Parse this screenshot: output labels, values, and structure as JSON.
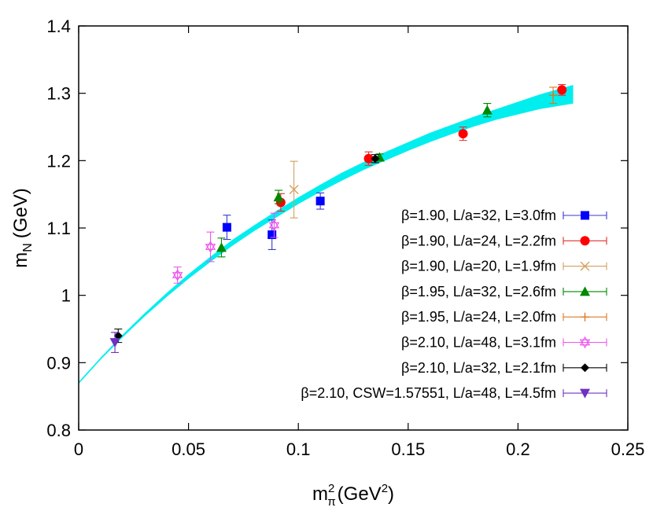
{
  "chart_data": {
    "type": "scatter",
    "title": "",
    "xlabel": "m_π^2 (GeV^2)",
    "xlabel_parts": {
      "base": "m",
      "sup": "2",
      "sub": "π",
      "unit_open": "(GeV",
      "unit_sup": "2",
      "unit_close": ")"
    },
    "ylabel": "m_N (GeV)",
    "ylabel_parts": {
      "base": "m",
      "sub": "N",
      "unit": "(GeV)"
    },
    "xlim": [
      0,
      0.25
    ],
    "ylim": [
      0.8,
      1.4
    ],
    "x_ticks": [
      {
        "value": 0,
        "label": "0"
      },
      {
        "value": 0.05,
        "label": "0.05"
      },
      {
        "value": 0.1,
        "label": "0.1"
      },
      {
        "value": 0.15,
        "label": "0.15"
      },
      {
        "value": 0.2,
        "label": "0.2"
      },
      {
        "value": 0.25,
        "label": "0.25"
      }
    ],
    "y_ticks": [
      {
        "value": 0.8,
        "label": "0.8"
      },
      {
        "value": 0.9,
        "label": "0.9"
      },
      {
        "value": 1.0,
        "label": "1"
      },
      {
        "value": 1.1,
        "label": "1.1"
      },
      {
        "value": 1.2,
        "label": "1.2"
      },
      {
        "value": 1.3,
        "label": "1.3"
      },
      {
        "value": 1.4,
        "label": "1.4"
      }
    ],
    "grid": false,
    "legend_position": "right",
    "fit_band": {
      "color": "#00eeee",
      "x": [
        0.0,
        0.01,
        0.02,
        0.03,
        0.04,
        0.05,
        0.06,
        0.07,
        0.08,
        0.09,
        0.1,
        0.11,
        0.12,
        0.13,
        0.14,
        0.15,
        0.16,
        0.17,
        0.18,
        0.19,
        0.2,
        0.21,
        0.225
      ],
      "lower": [
        0.869,
        0.905,
        0.938,
        0.969,
        0.998,
        1.025,
        1.05,
        1.074,
        1.096,
        1.116,
        1.136,
        1.154,
        1.171,
        1.187,
        1.201,
        1.215,
        1.228,
        1.24,
        1.251,
        1.261,
        1.269,
        1.277,
        1.285
      ],
      "upper": [
        0.871,
        0.907,
        0.941,
        0.973,
        1.003,
        1.031,
        1.057,
        1.082,
        1.104,
        1.125,
        1.145,
        1.164,
        1.182,
        1.198,
        1.213,
        1.227,
        1.241,
        1.253,
        1.265,
        1.276,
        1.287,
        1.298,
        1.312
      ]
    },
    "series": [
      {
        "name": "β=1.90, L/a=32, L=3.0fm",
        "marker": "square",
        "color": "#0000ff",
        "errcolor": "#3a3ad0",
        "points": [
          {
            "x": 0.0675,
            "y": 1.101,
            "err": 0.018
          },
          {
            "x": 0.088,
            "y": 1.09,
            "err": 0.022
          },
          {
            "x": 0.11,
            "y": 1.14,
            "err": 0.012
          }
        ]
      },
      {
        "name": "β=1.90, L/a=24, L=2.2fm",
        "marker": "circle",
        "color": "#ff0000",
        "errcolor": "#e03030",
        "points": [
          {
            "x": 0.092,
            "y": 1.138,
            "err": 0.013
          },
          {
            "x": 0.132,
            "y": 1.203,
            "err": 0.01
          },
          {
            "x": 0.175,
            "y": 1.24,
            "err": 0.01
          },
          {
            "x": 0.22,
            "y": 1.305,
            "err": 0.008
          }
        ]
      },
      {
        "name": "β=1.90, L/a=20, L=1.9fm",
        "marker": "cross",
        "color": "#d4a060",
        "errcolor": "#d4a060",
        "points": [
          {
            "x": 0.098,
            "y": 1.157,
            "err": 0.042
          }
        ]
      },
      {
        "name": "β=1.95, L/a=32, L=2.6fm",
        "marker": "triangle",
        "color": "#008800",
        "errcolor": "#008800",
        "points": [
          {
            "x": 0.065,
            "y": 1.071,
            "err": 0.014
          },
          {
            "x": 0.091,
            "y": 1.146,
            "err": 0.01
          },
          {
            "x": 0.137,
            "y": 1.205,
            "err": 0.005
          },
          {
            "x": 0.186,
            "y": 1.275,
            "err": 0.01
          }
        ]
      },
      {
        "name": "β=1.95, L/a=24, L=2.0fm",
        "marker": "plus",
        "color": "#e07820",
        "errcolor": "#e07820",
        "points": [
          {
            "x": 0.216,
            "y": 1.297,
            "err": 0.012
          }
        ]
      },
      {
        "name": "β=2.10, L/a=48, L=3.1fm",
        "marker": "star",
        "color": "#ee55ee",
        "errcolor": "#ee55ee",
        "points": [
          {
            "x": 0.045,
            "y": 1.03,
            "err": 0.012
          },
          {
            "x": 0.06,
            "y": 1.072,
            "err": 0.022
          },
          {
            "x": 0.089,
            "y": 1.104,
            "err": 0.018
          }
        ]
      },
      {
        "name": "β=2.10, L/a=32, L=2.1fm",
        "marker": "diamond",
        "color": "#000000",
        "errcolor": "#000000",
        "points": [
          {
            "x": 0.018,
            "y": 0.94,
            "err": 0.01
          },
          {
            "x": 0.135,
            "y": 1.203,
            "err": 0.006
          }
        ]
      },
      {
        "name": "β=2.10, CSW=1.57551, L/a=48, L=4.5fm",
        "marker": "invtriangle",
        "color": "#7030c0",
        "errcolor": "#7030c0",
        "points": [
          {
            "x": 0.0165,
            "y": 0.93,
            "err": 0.015
          }
        ]
      }
    ]
  }
}
